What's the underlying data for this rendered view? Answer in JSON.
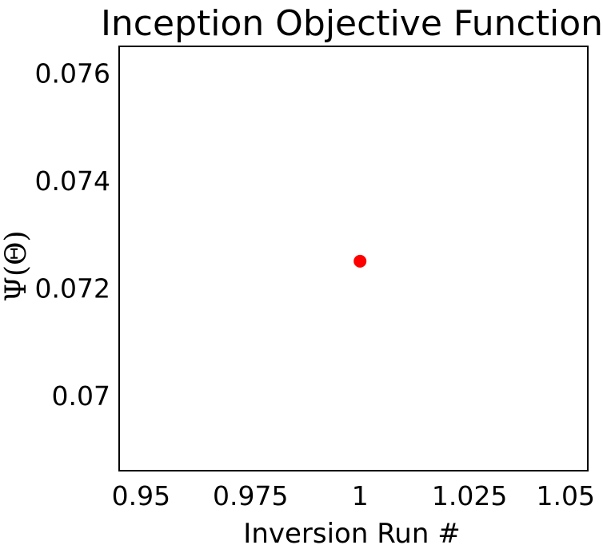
{
  "chart_data": {
    "type": "scatter",
    "title": "Inception Objective Function",
    "xlabel": "Inversion Run #",
    "ylabel": "Ψ(Θ)",
    "xlim": [
      0.945,
      1.052
    ],
    "ylim": [
      0.0686,
      0.0765
    ],
    "xticks": [
      0.95,
      0.975,
      1.0,
      1.025,
      1.05
    ],
    "xtick_labels": [
      "0.95",
      "0.975",
      "1",
      "1.025",
      "1.05"
    ],
    "yticks": [
      0.07,
      0.072,
      0.074,
      0.076
    ],
    "ytick_labels": [
      "0.07",
      "0.072",
      "0.074",
      "0.076"
    ],
    "grid": false,
    "series": [
      {
        "color": "#ff0000",
        "points": [
          {
            "x": 1.0,
            "y": 0.0725
          }
        ]
      }
    ]
  }
}
